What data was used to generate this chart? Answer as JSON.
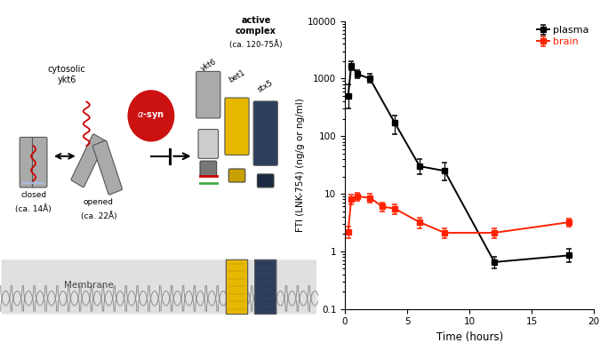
{
  "plasma_x": [
    0.25,
    0.5,
    1.0,
    2.0,
    4.0,
    6.0,
    8.0,
    12.0,
    18.0
  ],
  "plasma_y": [
    500,
    1700,
    1200,
    1000,
    170,
    30,
    25,
    0.65,
    0.85
  ],
  "plasma_yerr_lo": [
    200,
    300,
    200,
    150,
    60,
    8,
    8,
    0.15,
    0.2
  ],
  "plasma_yerr_hi": [
    300,
    300,
    200,
    200,
    60,
    10,
    10,
    0.15,
    0.25
  ],
  "brain_x": [
    0.25,
    0.5,
    1.0,
    2.0,
    3.0,
    4.0,
    6.0,
    8.0,
    12.0,
    18.0
  ],
  "brain_y": [
    2.2,
    8.0,
    9.0,
    8.5,
    6.0,
    5.5,
    3.2,
    2.1,
    2.1,
    3.2
  ],
  "brain_yerr_lo": [
    0.5,
    1.5,
    1.5,
    1.5,
    1.0,
    1.0,
    0.7,
    0.4,
    0.4,
    0.5
  ],
  "brain_yerr_hi": [
    0.5,
    1.5,
    1.5,
    1.5,
    1.0,
    1.0,
    0.7,
    0.4,
    0.4,
    0.5
  ],
  "plasma_color": "#000000",
  "brain_color": "#ff2200",
  "ylabel": "FTI (LNK-754) (ng/g or ng/ml)",
  "xlabel": "Time (hours)",
  "ylim_lo": 0.1,
  "ylim_hi": 10000,
  "xlim_lo": 0,
  "xlim_hi": 20,
  "xticks": [
    0,
    5,
    10,
    15,
    20
  ],
  "yticks": [
    0.1,
    1,
    10,
    100,
    1000,
    10000
  ],
  "gray": "#aaaaaa",
  "dark_gray": "#777777",
  "light_gray": "#cccccc",
  "red_col": "#cc1111",
  "yellow_col": "#e8b800",
  "navy_col": "#2d3f5e",
  "blue_light": "#aabbdd",
  "green_col": "#44aa44"
}
